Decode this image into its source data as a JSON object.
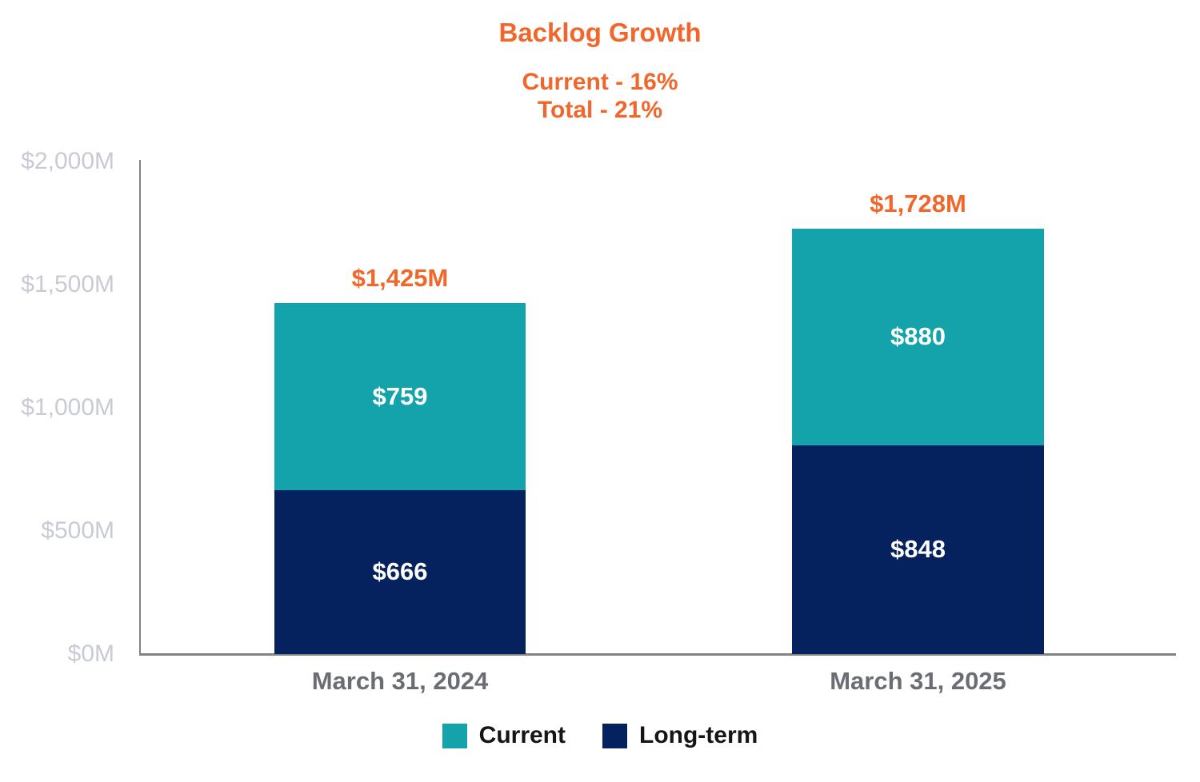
{
  "header": {
    "title": "Backlog Growth",
    "subtitle_line1": "Current - 16%",
    "subtitle_line2": "Total - 21%"
  },
  "colors": {
    "accent_orange": "#F1672B",
    "current_teal": "#14A3AB",
    "longterm_navy": "#05215E",
    "axis_gray": "#828282",
    "ytick_gray": "#C8CBD6",
    "xlabel_gray": "#6A6D73",
    "legend_text": "#151515"
  },
  "chart_data": {
    "type": "bar",
    "stacked": true,
    "title": "Backlog Growth",
    "subtitle": [
      "Current - 16%",
      "Total - 21%"
    ],
    "categories": [
      "March 31, 2024",
      "March 31, 2025"
    ],
    "series": [
      {
        "name": "Current",
        "color": "#14A3AB",
        "values": [
          759,
          880
        ],
        "labels": [
          "$759",
          "$880"
        ]
      },
      {
        "name": "Long-term",
        "color": "#05215E",
        "values": [
          666,
          848
        ],
        "labels": [
          "$666",
          "$848"
        ]
      }
    ],
    "totals": [
      1425,
      1728
    ],
    "total_labels": [
      "$1,425M",
      "$1,728M"
    ],
    "ylim": [
      0,
      2000
    ],
    "yticks": [
      0,
      500,
      1000,
      1500,
      2000
    ],
    "ytick_labels": [
      "$0M",
      "$500M",
      "$1,000M",
      "$1,500M",
      "$2,000M"
    ],
    "xlabel": "",
    "ylabel": "",
    "grid": false,
    "legend_position": "bottom",
    "legend": [
      "Current",
      "Long-term"
    ]
  }
}
